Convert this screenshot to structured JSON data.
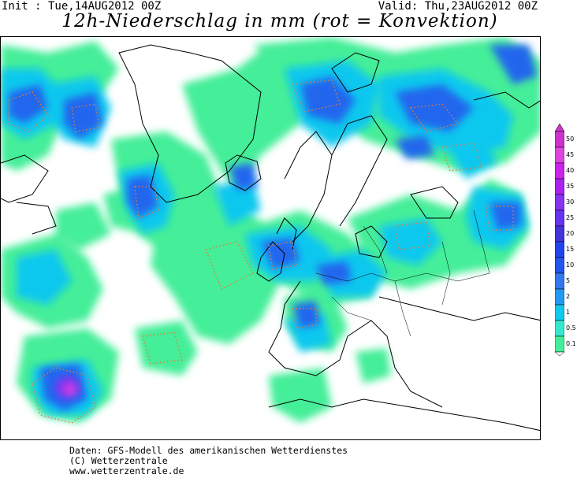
{
  "header": {
    "init": "Init : Tue,14AUG2012 00Z",
    "valid": "Valid: Thu,23AUG2012 00Z",
    "title": "12h-Niederschlag in mm (rot = Konvektion)"
  },
  "legend": {
    "levels": [
      "50",
      "45",
      "40",
      "35",
      "30",
      "25",
      "20",
      "15",
      "10",
      "5",
      "2",
      "1",
      "0.5",
      "0.1"
    ],
    "colors": [
      "#cc33cc",
      "#dd44dd",
      "#cc22ee",
      "#aa22ee",
      "#8833ee",
      "#6633ee",
      "#4433dd",
      "#2244ee",
      "#2255ee",
      "#3377ee",
      "#2299f0",
      "#11c8ee",
      "#33e8cc",
      "#44ee99"
    ]
  },
  "footer": {
    "line1": "Daten: GFS-Modell des amerikanischen Wetterdienstes",
    "line2": "(C) Wetterzentrale",
    "line3": "www.wetterzentrale.de"
  }
}
